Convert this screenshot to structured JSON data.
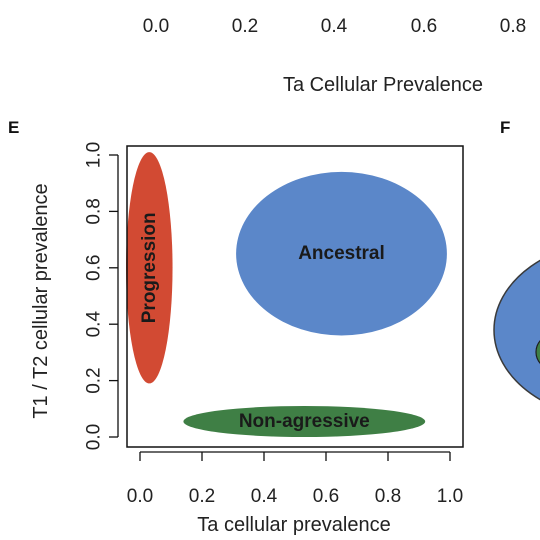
{
  "top_strip": {
    "tick_labels": [
      "0.0",
      "0.2",
      "0.4",
      "0.6",
      "0.8"
    ],
    "axis_title": "Ta Cellular Prevalence"
  },
  "panel_letters": {
    "left": "E",
    "right": "F"
  },
  "colors": {
    "ancestral": "#5b87c9",
    "progression": "#d24a33",
    "non_aggressive": "#3f7f45"
  },
  "chart_data": {
    "type": "scatter",
    "title": "",
    "xlabel": "Ta cellular prevalence",
    "ylabel": "T1 / T2 cellular prevalence",
    "xlim": [
      0.0,
      1.0
    ],
    "ylim": [
      0.0,
      1.0
    ],
    "x_ticks": [
      "0.0",
      "0.2",
      "0.4",
      "0.6",
      "0.8",
      "1.0"
    ],
    "y_ticks": [
      "0.0",
      "0.2",
      "0.4",
      "0.6",
      "0.8",
      "1.0"
    ],
    "grid": false,
    "regions": [
      {
        "label": "Ancestral",
        "shape": "ellipse",
        "center": [
          0.65,
          0.65
        ],
        "radius": [
          0.34,
          0.29
        ],
        "color": "#5b87c9",
        "label_vertical": false
      },
      {
        "label": "Progression",
        "shape": "ellipse",
        "center": [
          0.03,
          0.6
        ],
        "radius": [
          0.075,
          0.41
        ],
        "color": "#d24a33",
        "label_vertical": true
      },
      {
        "label": "Non-agressive",
        "shape": "ellipse",
        "center": [
          0.53,
          0.055
        ],
        "radius": [
          0.39,
          0.055
        ],
        "color": "#3f7f45",
        "label_vertical": false
      }
    ]
  }
}
